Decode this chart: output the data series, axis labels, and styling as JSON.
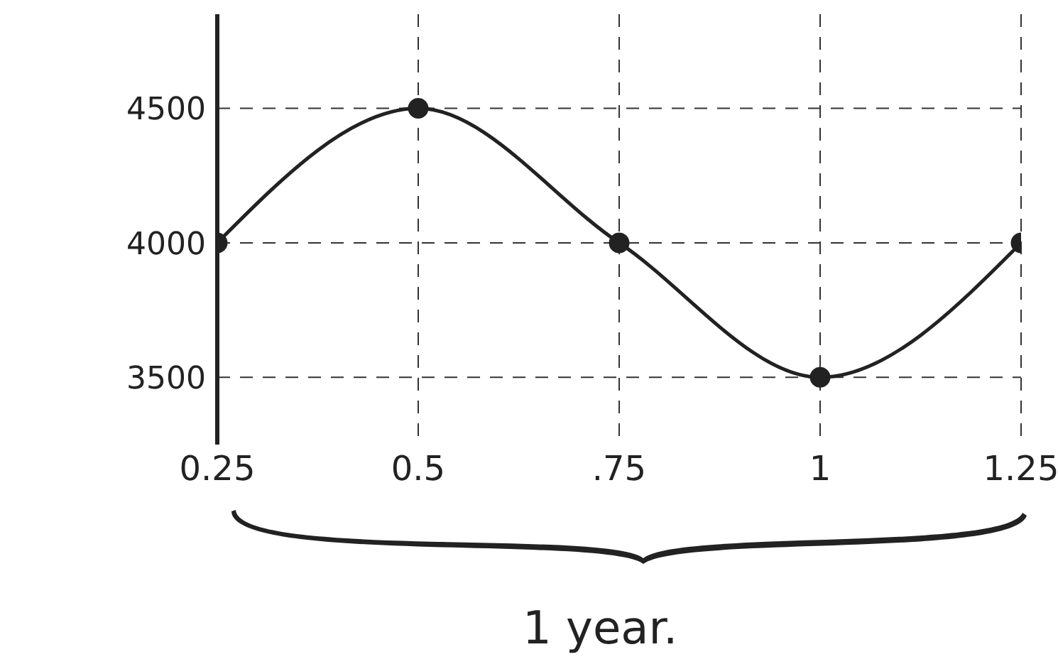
{
  "chart_data": {
    "type": "line",
    "x": [
      0.25,
      0.5,
      0.75,
      1,
      1.25
    ],
    "series": [
      {
        "color": "#222222",
        "values": [
          4000,
          4500,
          4000,
          3500,
          4000
        ]
      }
    ],
    "xlim": [
      0.25,
      1.25
    ],
    "xticks": [
      0.25,
      {
        "value": 0.5,
        "label": "0.5"
      },
      {
        "value": 0.75,
        "label": ".75"
      },
      1,
      1.25
    ],
    "ylim": [
      3250,
      4850
    ],
    "yticks": [
      3500,
      4000,
      4500
    ],
    "grid": true,
    "marker": "circle",
    "line_style": "solid",
    "annotations": [
      "1 year."
    ]
  }
}
